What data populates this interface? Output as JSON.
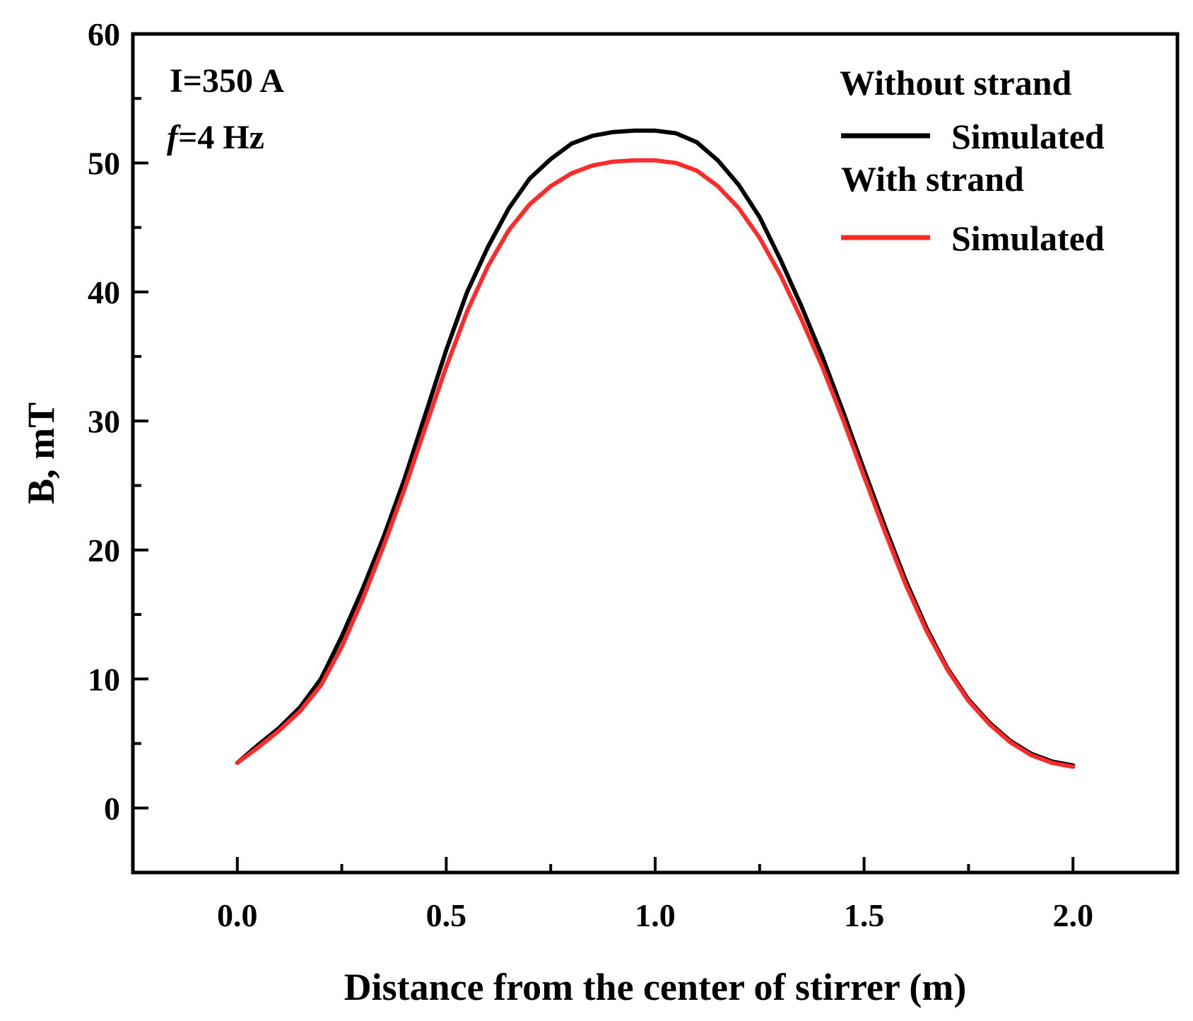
{
  "chart_data": {
    "type": "line",
    "title": "",
    "xlabel": "Distance from the center of stirrer (m)",
    "ylabel": "B, mT",
    "xlim": [
      -0.25,
      2.25
    ],
    "ylim": [
      -5,
      60
    ],
    "xticks": [
      0.0,
      0.5,
      1.0,
      1.5,
      2.0
    ],
    "xtick_labels": [
      "0.0",
      "0.5",
      "1.0",
      "1.5",
      "2.0"
    ],
    "yticks": [
      0,
      10,
      20,
      30,
      40,
      50,
      60
    ],
    "ytick_labels": [
      "0",
      "10",
      "20",
      "30",
      "40",
      "50",
      "60"
    ],
    "grid": false,
    "annotations": {
      "current": "I=350 A",
      "freq_symbol": "f",
      "freq_value": "=4 Hz"
    },
    "legend": {
      "placement": "top-right",
      "groups": [
        {
          "heading": "Without strand",
          "entry": "Simulated",
          "color": "#000000"
        },
        {
          "heading": "With strand",
          "entry": "Simulated",
          "color": "#ff2a2a"
        }
      ]
    },
    "series": [
      {
        "name": "Without strand - Simulated",
        "color": "#000000",
        "x": [
          0.0,
          0.05,
          0.1,
          0.15,
          0.2,
          0.25,
          0.3,
          0.35,
          0.4,
          0.45,
          0.5,
          0.55,
          0.6,
          0.65,
          0.7,
          0.75,
          0.8,
          0.85,
          0.9,
          0.95,
          1.0,
          1.05,
          1.1,
          1.15,
          1.2,
          1.25,
          1.3,
          1.35,
          1.4,
          1.45,
          1.5,
          1.55,
          1.6,
          1.65,
          1.7,
          1.75,
          1.8,
          1.85,
          1.9,
          1.95,
          2.0
        ],
        "y": [
          3.5,
          4.9,
          6.2,
          7.8,
          10.0,
          13.3,
          17.0,
          21.0,
          25.5,
          30.5,
          35.5,
          40.0,
          43.5,
          46.5,
          48.8,
          50.3,
          51.5,
          52.1,
          52.4,
          52.5,
          52.5,
          52.3,
          51.6,
          50.2,
          48.3,
          45.8,
          42.5,
          38.9,
          35.0,
          30.7,
          26.2,
          21.8,
          17.6,
          13.9,
          10.8,
          8.4,
          6.6,
          5.2,
          4.2,
          3.6,
          3.3
        ]
      },
      {
        "name": "With strand - Simulated",
        "color": "#ff2a2a",
        "x": [
          0.0,
          0.05,
          0.1,
          0.15,
          0.2,
          0.25,
          0.3,
          0.35,
          0.4,
          0.45,
          0.5,
          0.55,
          0.6,
          0.65,
          0.7,
          0.75,
          0.8,
          0.85,
          0.9,
          0.95,
          1.0,
          1.05,
          1.1,
          1.15,
          1.2,
          1.25,
          1.3,
          1.35,
          1.4,
          1.45,
          1.5,
          1.55,
          1.6,
          1.65,
          1.7,
          1.75,
          1.8,
          1.85,
          1.9,
          1.95,
          2.0
        ],
        "y": [
          3.5,
          4.7,
          6.0,
          7.5,
          9.5,
          12.5,
          16.2,
          20.3,
          24.7,
          29.5,
          34.2,
          38.5,
          42.0,
          44.8,
          46.8,
          48.2,
          49.2,
          49.8,
          50.1,
          50.2,
          50.2,
          50.0,
          49.4,
          48.2,
          46.5,
          44.2,
          41.3,
          37.9,
          34.2,
          30.1,
          25.7,
          21.4,
          17.3,
          13.7,
          10.7,
          8.3,
          6.5,
          5.1,
          4.1,
          3.5,
          3.2
        ]
      }
    ]
  }
}
